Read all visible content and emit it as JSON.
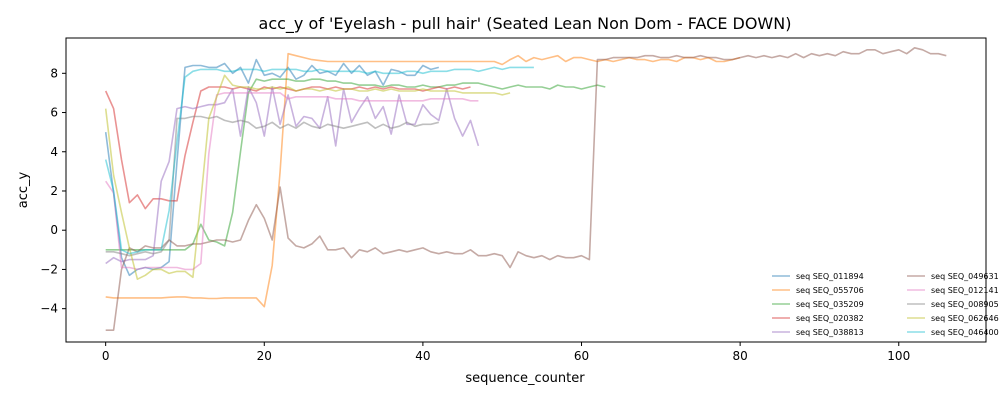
{
  "chart_data": {
    "type": "line",
    "title": "acc_y of 'Eyelash - pull hair' (Seated Lean Non Dom - FACE DOWN)",
    "xlabel": "sequence_counter",
    "ylabel": "acc_y",
    "xlim": [
      -5,
      111
    ],
    "ylim": [
      -5.7,
      9.8
    ],
    "xticks": [
      0,
      20,
      40,
      60,
      80,
      100
    ],
    "yticks": [
      -4,
      -2,
      0,
      2,
      4,
      6,
      8
    ],
    "grid": false,
    "legend_position": "lower right",
    "series": [
      {
        "name": "seq SEQ_011894",
        "color": "#1f77b4",
        "x": [
          0,
          1,
          2,
          3,
          4,
          5,
          6,
          7,
          8,
          9,
          10,
          11,
          12,
          13,
          14,
          15,
          16,
          17,
          18,
          19,
          20,
          21,
          22,
          23,
          24,
          25,
          26,
          27,
          28,
          29,
          30,
          31,
          32,
          33,
          34,
          35,
          36,
          37,
          38,
          39,
          40,
          41,
          42
        ],
        "y": [
          5.0,
          1.9,
          -1.4,
          -2.3,
          -2.0,
          -1.9,
          -2.0,
          -1.9,
          -1.6,
          3.5,
          8.3,
          8.4,
          8.4,
          8.3,
          8.3,
          8.5,
          8.0,
          8.3,
          7.5,
          8.7,
          7.9,
          8.0,
          7.8,
          8.3,
          7.7,
          7.9,
          8.4,
          8.0,
          8.1,
          7.9,
          8.5,
          8.0,
          8.4,
          7.9,
          8.1,
          7.4,
          8.2,
          8.1,
          7.9,
          7.9,
          8.4,
          8.2,
          8.3
        ]
      },
      {
        "name": "seq SEQ_055706",
        "color": "#ff7f0e",
        "x": [
          0,
          1,
          2,
          3,
          4,
          5,
          6,
          7,
          8,
          9,
          10,
          11,
          12,
          13,
          14,
          15,
          16,
          17,
          18,
          19,
          20,
          21,
          22,
          23,
          24,
          25,
          26,
          27,
          28,
          29,
          30,
          31,
          32,
          33,
          34,
          35,
          36,
          37,
          38,
          39,
          40,
          41,
          42,
          43,
          44,
          45,
          46,
          47,
          48,
          49,
          50,
          51,
          52,
          53,
          54,
          55,
          56,
          57,
          58,
          59,
          60,
          61,
          62,
          63,
          64,
          65,
          66,
          67,
          68,
          69,
          70,
          71,
          72,
          73,
          74,
          75,
          76,
          77,
          78,
          79,
          80
        ],
        "y": [
          -3.4,
          -3.45,
          -3.45,
          -3.45,
          -3.45,
          -3.45,
          -3.45,
          -3.45,
          -3.42,
          -3.4,
          -3.4,
          -3.45,
          -3.45,
          -3.48,
          -3.48,
          -3.45,
          -3.45,
          -3.45,
          -3.45,
          -3.45,
          -3.9,
          -1.8,
          3.0,
          9.0,
          8.9,
          8.8,
          8.7,
          8.65,
          8.6,
          8.6,
          8.6,
          8.6,
          8.6,
          8.6,
          8.6,
          8.6,
          8.6,
          8.6,
          8.6,
          8.6,
          8.6,
          8.6,
          8.6,
          8.6,
          8.6,
          8.6,
          8.6,
          8.6,
          8.6,
          8.6,
          8.45,
          8.7,
          8.9,
          8.6,
          8.8,
          8.7,
          8.8,
          8.9,
          8.6,
          8.8,
          8.8,
          8.7,
          8.6,
          8.7,
          8.6,
          8.7,
          8.8,
          8.7,
          8.7,
          8.6,
          8.7,
          8.7,
          8.6,
          8.8,
          8.8,
          8.7,
          8.8,
          8.6,
          8.6,
          8.7,
          8.8
        ]
      },
      {
        "name": "seq SEQ_035209",
        "color": "#2ca02c",
        "x": [
          0,
          1,
          2,
          3,
          4,
          5,
          6,
          7,
          8,
          9,
          10,
          11,
          12,
          13,
          14,
          15,
          16,
          17,
          18,
          19,
          20,
          21,
          22,
          23,
          24,
          25,
          26,
          27,
          28,
          29,
          30,
          31,
          32,
          33,
          34,
          35,
          36,
          37,
          38,
          39,
          40,
          41,
          42,
          43,
          44,
          45,
          46,
          47,
          48,
          49,
          50,
          51,
          52,
          53,
          54,
          55,
          56,
          57,
          58,
          59,
          60,
          61,
          62,
          63
        ],
        "y": [
          -1.0,
          -1.0,
          -1.0,
          -1.0,
          -1.0,
          -1.0,
          -1.0,
          -1.0,
          -1.0,
          -1.0,
          -1.0,
          -0.7,
          0.3,
          -0.5,
          -0.6,
          -0.8,
          0.9,
          4.0,
          7.0,
          7.7,
          7.6,
          7.7,
          7.7,
          7.7,
          7.6,
          7.6,
          7.7,
          7.7,
          7.6,
          7.6,
          7.5,
          7.5,
          7.4,
          7.4,
          7.4,
          7.3,
          7.4,
          7.4,
          7.3,
          7.3,
          7.4,
          7.3,
          7.3,
          7.4,
          7.4,
          7.5,
          7.5,
          7.5,
          7.4,
          7.3,
          7.2,
          7.3,
          7.4,
          7.3,
          7.3,
          7.3,
          7.2,
          7.4,
          7.3,
          7.3,
          7.2,
          7.3,
          7.4,
          7.3
        ]
      },
      {
        "name": "seq SEQ_020382",
        "color": "#d62728",
        "x": [
          0,
          1,
          2,
          3,
          4,
          5,
          6,
          7,
          8,
          9,
          10,
          11,
          12,
          13,
          14,
          15,
          16,
          17,
          18,
          19,
          20,
          21,
          22,
          23,
          24,
          25,
          26,
          27,
          28,
          29,
          30,
          31,
          32,
          33,
          34,
          35,
          36,
          37,
          38,
          39,
          40,
          41,
          42,
          43,
          44,
          45,
          46
        ],
        "y": [
          7.1,
          6.2,
          3.6,
          1.4,
          1.8,
          1.1,
          1.6,
          1.6,
          1.5,
          1.5,
          3.8,
          5.5,
          7.1,
          7.3,
          7.3,
          7.3,
          7.2,
          7.3,
          7.2,
          7.1,
          7.3,
          7.2,
          7.3,
          7.2,
          7.1,
          7.2,
          7.3,
          7.3,
          7.2,
          7.3,
          7.2,
          7.2,
          7.3,
          7.2,
          7.3,
          7.2,
          7.3,
          7.2,
          7.2,
          7.2,
          7.1,
          7.2,
          7.3,
          7.2,
          7.3,
          7.2,
          7.3
        ]
      },
      {
        "name": "seq SEQ_038813",
        "color": "#9467bd",
        "x": [
          0,
          1,
          2,
          3,
          4,
          5,
          6,
          7,
          8,
          9,
          10,
          11,
          12,
          13,
          14,
          15,
          16,
          17,
          18,
          19,
          20,
          21,
          22,
          23,
          24,
          25,
          26,
          27,
          28,
          29,
          30,
          31,
          32,
          33,
          34,
          35,
          36,
          37,
          38,
          39,
          40,
          41,
          42,
          43,
          44,
          45,
          46,
          47
        ],
        "y": [
          -1.7,
          -1.4,
          -1.6,
          -1.5,
          -1.5,
          -1.5,
          -1.3,
          2.5,
          3.5,
          6.2,
          6.3,
          6.2,
          6.3,
          6.4,
          6.4,
          6.5,
          7.2,
          4.8,
          7.3,
          6.5,
          4.8,
          7.3,
          5.4,
          6.9,
          5.3,
          5.8,
          5.7,
          5.2,
          6.8,
          4.3,
          7.2,
          5.5,
          6.2,
          6.8,
          5.7,
          6.3,
          4.9,
          6.9,
          5.4,
          5.4,
          6.4,
          5.9,
          5.6,
          7.2,
          5.7,
          4.8,
          5.6,
          4.3
        ]
      },
      {
        "name": "seq SEQ_049631",
        "color": "#8c564b",
        "x": [
          0,
          1,
          2,
          3,
          4,
          5,
          6,
          7,
          8,
          9,
          10,
          11,
          12,
          13,
          14,
          15,
          16,
          17,
          18,
          19,
          20,
          21,
          22,
          23,
          24,
          25,
          26,
          27,
          28,
          29,
          30,
          31,
          32,
          33,
          34,
          35,
          36,
          37,
          38,
          39,
          40,
          41,
          42,
          43,
          44,
          45,
          46,
          47,
          48,
          49,
          50,
          51,
          52,
          53,
          54,
          55,
          56,
          57,
          58,
          59,
          60,
          61,
          62,
          63,
          64,
          65,
          66,
          67,
          68,
          69,
          70,
          71,
          72,
          73,
          74,
          75,
          76,
          77,
          78,
          79,
          80,
          81,
          82,
          83,
          84,
          85,
          86,
          87,
          88,
          89,
          90,
          91,
          92,
          93,
          94,
          95,
          96,
          97,
          98,
          99,
          100,
          101,
          102,
          103,
          104,
          105,
          106
        ],
        "y": [
          -5.1,
          -5.1,
          -2.0,
          -0.9,
          -1.1,
          -0.8,
          -0.9,
          -0.9,
          -0.5,
          -0.8,
          -0.8,
          -0.7,
          -0.7,
          -0.6,
          -0.5,
          -0.5,
          -0.6,
          -0.5,
          0.5,
          1.3,
          0.6,
          -0.5,
          2.2,
          -0.4,
          -0.8,
          -0.9,
          -0.7,
          -0.3,
          -1.0,
          -1.0,
          -0.9,
          -1.4,
          -1.0,
          -1.1,
          -0.9,
          -1.2,
          -1.1,
          -1.0,
          -1.1,
          -1.0,
          -0.9,
          -1.1,
          -1.2,
          -1.1,
          -1.2,
          -1.2,
          -1.0,
          -1.3,
          -1.3,
          -1.2,
          -1.3,
          -1.9,
          -1.1,
          -1.3,
          -1.4,
          -1.3,
          -1.5,
          -1.3,
          -1.4,
          -1.4,
          -1.3,
          -1.5,
          8.7,
          8.7,
          8.8,
          8.8,
          8.8,
          8.8,
          8.9,
          8.9,
          8.8,
          8.8,
          8.9,
          8.8,
          8.8,
          8.9,
          8.8,
          8.8,
          8.7,
          8.7,
          8.8,
          8.9,
          8.8,
          8.9,
          8.8,
          8.9,
          8.8,
          9.0,
          8.8,
          9.0,
          8.9,
          9.0,
          8.9,
          9.1,
          9.0,
          9.0,
          9.2,
          9.2,
          9.0,
          9.1,
          9.2,
          9.0,
          9.3,
          9.2,
          9.0,
          9.0,
          8.9
        ]
      },
      {
        "name": "seq SEQ_012141",
        "color": "#e377c2",
        "x": [
          0,
          1,
          2,
          3,
          4,
          5,
          6,
          7,
          8,
          9,
          10,
          11,
          12,
          13,
          14,
          15,
          16,
          17,
          18,
          19,
          20,
          21,
          22,
          23,
          24,
          25,
          26,
          27,
          28,
          29,
          30,
          31,
          32,
          33,
          34,
          35,
          36,
          37,
          38,
          39,
          40,
          41,
          42,
          43,
          44,
          45,
          46,
          47
        ],
        "y": [
          2.5,
          1.9,
          -1.9,
          -1.9,
          -2.0,
          -1.9,
          -1.9,
          -1.9,
          -1.9,
          -1.9,
          -2.0,
          -2.0,
          -1.7,
          3.9,
          6.9,
          7.0,
          7.0,
          7.0,
          7.0,
          7.0,
          7.0,
          7.0,
          7.0,
          6.7,
          6.8,
          6.8,
          6.8,
          6.8,
          6.8,
          6.7,
          6.7,
          6.7,
          6.6,
          6.6,
          6.6,
          6.6,
          6.6,
          6.6,
          6.6,
          6.6,
          6.6,
          6.7,
          6.7,
          6.7,
          6.7,
          6.7,
          6.6,
          6.6
        ]
      },
      {
        "name": "seq SEQ_008905",
        "color": "#7f7f7f",
        "x": [
          0,
          1,
          2,
          3,
          4,
          5,
          6,
          7,
          8,
          9,
          10,
          11,
          12,
          13,
          14,
          15,
          16,
          17,
          18,
          19,
          20,
          21,
          22,
          23,
          24,
          25,
          26,
          27,
          28,
          29,
          30,
          31,
          32,
          33,
          34,
          35,
          36,
          37,
          38,
          39,
          40,
          41,
          42
        ],
        "y": [
          -1.1,
          -1.1,
          -1.2,
          -1.3,
          -1.2,
          -1.1,
          -1.2,
          -1.1,
          -0.5,
          5.7,
          5.7,
          5.8,
          5.8,
          5.7,
          5.8,
          5.6,
          5.5,
          5.6,
          5.5,
          5.2,
          5.3,
          5.5,
          5.2,
          5.4,
          5.2,
          5.5,
          5.3,
          5.2,
          5.4,
          5.3,
          5.2,
          5.3,
          5.4,
          5.5,
          5.2,
          5.4,
          5.2,
          5.3,
          5.5,
          5.3,
          5.4,
          5.4,
          5.5
        ]
      },
      {
        "name": "seq SEQ_062646",
        "color": "#bcbd22",
        "x": [
          0,
          1,
          2,
          3,
          4,
          5,
          6,
          7,
          8,
          9,
          10,
          11,
          12,
          13,
          14,
          15,
          16,
          17,
          18,
          19,
          20,
          21,
          22,
          23,
          24,
          25,
          26,
          27,
          28,
          29,
          30,
          31,
          32,
          33,
          34,
          35,
          36,
          37,
          38,
          39,
          40,
          41,
          42,
          43,
          44,
          45,
          46,
          47,
          48,
          49,
          50,
          51
        ],
        "y": [
          6.2,
          2.8,
          0.9,
          -0.9,
          -2.5,
          -2.3,
          -2.0,
          -2.0,
          -2.2,
          -2.1,
          -2.1,
          -2.4,
          1.5,
          5.7,
          6.8,
          7.9,
          7.4,
          7.3,
          7.3,
          7.2,
          7.2,
          7.3,
          7.2,
          7.3,
          7.1,
          7.2,
          7.2,
          7.1,
          7.2,
          7.1,
          7.2,
          7.2,
          7.1,
          7.1,
          7.2,
          7.1,
          7.2,
          7.1,
          7.1,
          7.1,
          7.2,
          7.1,
          7.1,
          7.1,
          7.1,
          7.0,
          7.0,
          7.0,
          7.0,
          7.0,
          6.9,
          7.0
        ]
      },
      {
        "name": "seq SEQ_046400",
        "color": "#17becf",
        "x": [
          0,
          1,
          2,
          3,
          4,
          5,
          6,
          7,
          8,
          9,
          10,
          11,
          12,
          13,
          14,
          15,
          16,
          17,
          18,
          19,
          20,
          21,
          22,
          23,
          24,
          25,
          26,
          27,
          28,
          29,
          30,
          31,
          32,
          33,
          34,
          35,
          36,
          37,
          38,
          39,
          40,
          41,
          42,
          43,
          44,
          45,
          46,
          47,
          48,
          49,
          50,
          51,
          52,
          53,
          54
        ],
        "y": [
          3.6,
          2.0,
          -1.0,
          -1.2,
          -1.1,
          -1.0,
          -1.0,
          -1.0,
          1.0,
          4.5,
          7.8,
          8.1,
          8.2,
          8.2,
          8.2,
          8.1,
          8.1,
          8.2,
          8.2,
          8.2,
          8.1,
          8.2,
          8.2,
          8.2,
          8.2,
          8.1,
          8.1,
          8.2,
          8.1,
          8.1,
          8.1,
          8.1,
          8.1,
          8.0,
          8.1,
          8.0,
          8.0,
          8.0,
          8.1,
          8.1,
          8.0,
          8.1,
          8.1,
          8.1,
          8.2,
          8.2,
          8.2,
          8.1,
          8.2,
          8.3,
          8.2,
          8.3,
          8.3,
          8.3,
          8.3
        ]
      }
    ]
  }
}
